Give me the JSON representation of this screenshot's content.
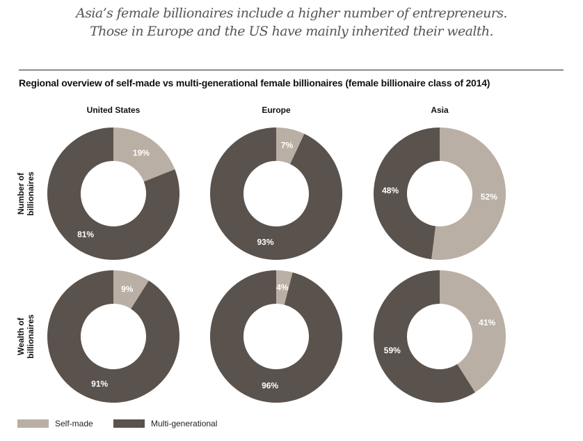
{
  "headline": [
    "Asia’s female billionaires include a higher number of entrepreneurs.",
    "Those in Europe and the US have mainly inherited their wealth."
  ],
  "chart_data": {
    "type": "pie",
    "title": "Regional overview of self-made vs multi-generational female billionaires (female billionaire class of 2014)",
    "columns": [
      "United States",
      "Europe",
      "Asia"
    ],
    "rows": [
      [
        "Number of",
        "billionaires"
      ],
      [
        "Wealth of",
        "billionaires"
      ]
    ],
    "legend": [
      {
        "name": "Self-made",
        "color": "#b9afa4"
      },
      {
        "name": "Multi-generational",
        "color": "#5a524c"
      }
    ],
    "legend_position": "bottom-left",
    "series": [
      {
        "row": "Number of billionaires",
        "values": [
          [
            19,
            81
          ],
          [
            7,
            93
          ],
          [
            52,
            48
          ]
        ]
      },
      {
        "row": "Wealth of billionaires",
        "values": [
          [
            9,
            91
          ],
          [
            4,
            96
          ],
          [
            41,
            59
          ]
        ]
      }
    ]
  }
}
